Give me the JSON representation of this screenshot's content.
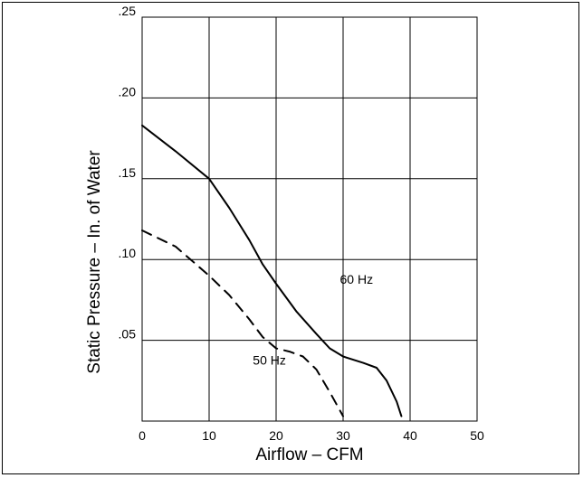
{
  "chart_data": {
    "type": "line",
    "title": "",
    "xlabel": "Airflow – CFM",
    "ylabel": "Static Pressure – In. of Water",
    "xlim": [
      0,
      50
    ],
    "ylim": [
      0,
      0.25
    ],
    "grid": true,
    "x_ticks": [
      {
        "value": 0,
        "label": "0"
      },
      {
        "value": 10,
        "label": "10"
      },
      {
        "value": 20,
        "label": "20"
      },
      {
        "value": 30,
        "label": "30"
      },
      {
        "value": 40,
        "label": "40"
      },
      {
        "value": 50,
        "label": "50"
      }
    ],
    "y_ticks": [
      {
        "value": 0.05,
        "label": ".05"
      },
      {
        "value": 0.1,
        "label": ".10"
      },
      {
        "value": 0.15,
        "label": ".15"
      },
      {
        "value": 0.2,
        "label": ".20"
      },
      {
        "value": 0.25,
        "label": ".25"
      }
    ],
    "series": [
      {
        "name": "60 Hz",
        "style": "solid",
        "color": "#000000",
        "label_at": [
          32,
          0.085
        ],
        "points": [
          [
            0,
            0.183
          ],
          [
            5,
            0.167
          ],
          [
            10,
            0.15
          ],
          [
            13,
            0.132
          ],
          [
            16,
            0.112
          ],
          [
            18,
            0.097
          ],
          [
            20,
            0.085
          ],
          [
            23,
            0.068
          ],
          [
            26,
            0.054
          ],
          [
            28,
            0.045
          ],
          [
            30,
            0.04
          ],
          [
            33,
            0.036
          ],
          [
            35,
            0.033
          ],
          [
            36.5,
            0.025
          ],
          [
            38,
            0.012
          ],
          [
            38.7,
            0.003
          ]
        ]
      },
      {
        "name": "50 Hz",
        "style": "dashed",
        "color": "#000000",
        "label_at": [
          19,
          0.035
        ],
        "points": [
          [
            0,
            0.118
          ],
          [
            5,
            0.108
          ],
          [
            10,
            0.09
          ],
          [
            13,
            0.078
          ],
          [
            16,
            0.063
          ],
          [
            18,
            0.052
          ],
          [
            20,
            0.045
          ],
          [
            22,
            0.043
          ],
          [
            24,
            0.04
          ],
          [
            26,
            0.032
          ],
          [
            28,
            0.018
          ],
          [
            30,
            0.003
          ]
        ]
      }
    ]
  }
}
